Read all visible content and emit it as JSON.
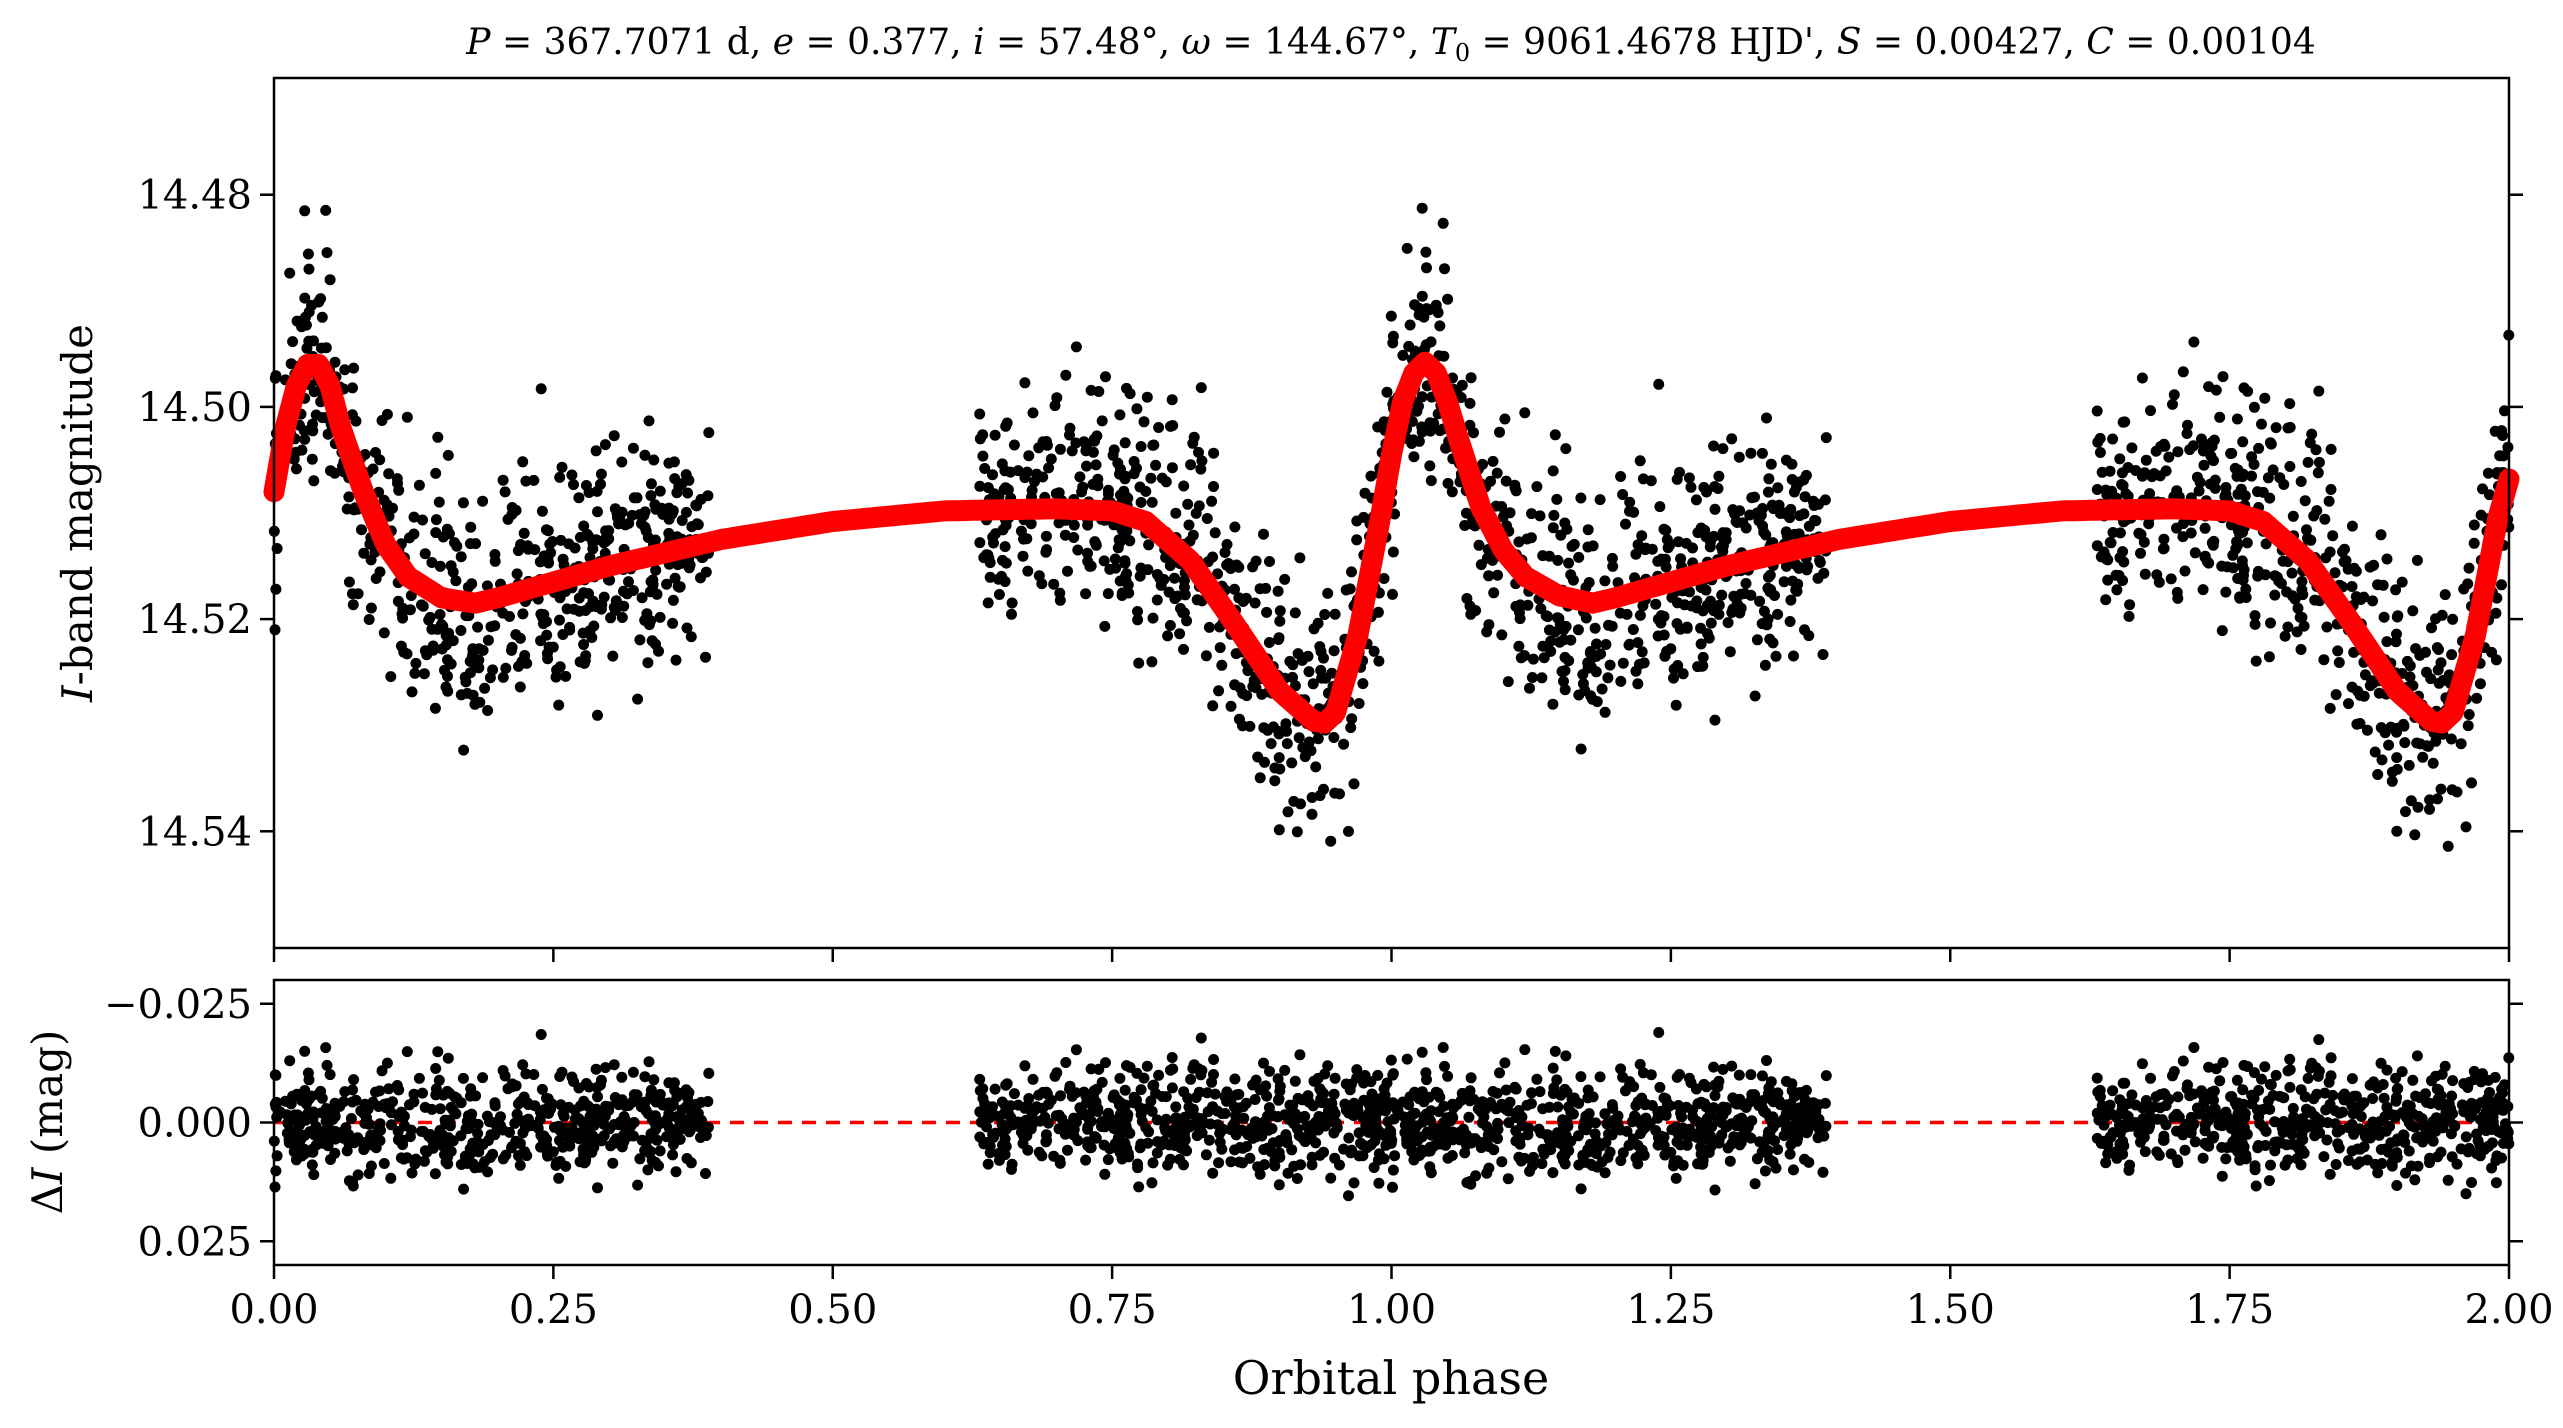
{
  "chart_data": [
    {
      "type": "scatter",
      "title": "P = 367.7071 d, e = 0.377, i = 57.48°, ω = 144.67°, T0 = 9061.4678 HJD', S = 0.00427, C = 0.00104",
      "title_parts": {
        "P_sym": "P",
        "P_val": " = 367.7071 d, ",
        "e_sym": "e",
        "e_val": " = 0.377, ",
        "i_sym": "i",
        "i_val": " = 57.48°, ",
        "w_sym": "ω",
        "w_val": " = 144.67°, ",
        "T_sym": "T",
        "T_sub": "0",
        "T_val": " = 9061.4678 HJD', ",
        "S_sym": "S",
        "S_val": " = 0.00427, ",
        "C_sym": "C",
        "C_val": " = 0.00104"
      },
      "xlabel": "",
      "ylabel": "I-band magnitude",
      "ylabel_parts": {
        "sym": "I",
        "rest": "-band magnitude"
      },
      "ylim": [
        14.551,
        14.469
      ],
      "y_inverted": true,
      "xlim": [
        0,
        2
      ],
      "y_ticks": [
        "14.48",
        "14.50",
        "14.52",
        "14.54"
      ],
      "y_tick_values": [
        14.48,
        14.5,
        14.52,
        14.54
      ],
      "x_tick_values": [
        0,
        0.25,
        0.5,
        0.75,
        1.0,
        1.25,
        1.5,
        1.75,
        2.0
      ],
      "x_tick_labels_shown": false,
      "series": [
        {
          "kind": "observations",
          "color": "#000000",
          "marker": "filled-circle",
          "phase_coverage": [
            [
              0.0,
              0.39
            ],
            [
              0.63,
              1.39
            ],
            [
              1.63,
              2.0
            ]
          ]
        },
        {
          "kind": "model",
          "color": "#ff0000",
          "line": "thick-solid",
          "x": [
            0.0,
            0.01,
            0.02,
            0.03,
            0.04,
            0.05,
            0.06,
            0.08,
            0.1,
            0.12,
            0.15,
            0.18,
            0.2,
            0.25,
            0.3,
            0.4,
            0.5,
            0.6,
            0.7,
            0.75,
            0.78,
            0.82,
            0.86,
            0.9,
            0.93,
            0.94,
            0.95,
            0.97,
            0.99,
            1.0,
            1.01,
            1.02,
            1.03,
            1.04,
            1.05,
            1.06,
            1.08,
            1.1,
            1.12,
            1.15,
            1.18,
            1.2,
            1.25,
            1.3,
            1.4,
            1.5,
            1.6,
            1.7,
            1.75,
            1.78,
            1.82,
            1.86,
            1.9,
            1.93,
            1.94,
            1.95,
            1.97,
            1.99,
            2.0
          ],
          "y": [
            14.508,
            14.502,
            14.498,
            14.496,
            14.496,
            14.498,
            14.502,
            14.508,
            14.513,
            14.516,
            14.518,
            14.5185,
            14.518,
            14.5165,
            14.515,
            14.5125,
            14.5108,
            14.5098,
            14.5096,
            14.5098,
            14.5108,
            14.5145,
            14.5205,
            14.5268,
            14.5296,
            14.5298,
            14.5288,
            14.5215,
            14.5105,
            14.5045,
            14.4995,
            14.4968,
            14.4958,
            14.4968,
            14.4995,
            14.503,
            14.5095,
            14.5135,
            14.516,
            14.5178,
            14.5185,
            14.518,
            14.5165,
            14.515,
            14.5125,
            14.5108,
            14.5098,
            14.5096,
            14.5098,
            14.5108,
            14.5145,
            14.5205,
            14.5268,
            14.5296,
            14.5298,
            14.5288,
            14.5215,
            14.5105,
            14.5068
          ]
        }
      ]
    },
    {
      "type": "scatter",
      "xlabel": "Orbital phase",
      "ylabel": "ΔI (mag)",
      "ylabel_parts": {
        "delta": "Δ",
        "sym": "I",
        "rest": " (mag)"
      },
      "xlim": [
        0,
        2
      ],
      "ylim": [
        0.03,
        -0.03
      ],
      "y_inverted": true,
      "x_ticks": [
        "0.00",
        "0.25",
        "0.50",
        "0.75",
        "1.00",
        "1.25",
        "1.50",
        "1.75",
        "2.00"
      ],
      "x_tick_values": [
        0,
        0.25,
        0.5,
        0.75,
        1.0,
        1.25,
        1.5,
        1.75,
        2.0
      ],
      "y_ticks": [
        "−0.025",
        "0.000",
        "0.025"
      ],
      "y_tick_values": [
        -0.025,
        0.0,
        0.025
      ],
      "reference_line": {
        "y": 0.0,
        "color": "#ff0000",
        "style": "dashed"
      },
      "series": [
        {
          "kind": "residuals",
          "color": "#000000",
          "marker": "filled-circle"
        }
      ]
    }
  ]
}
